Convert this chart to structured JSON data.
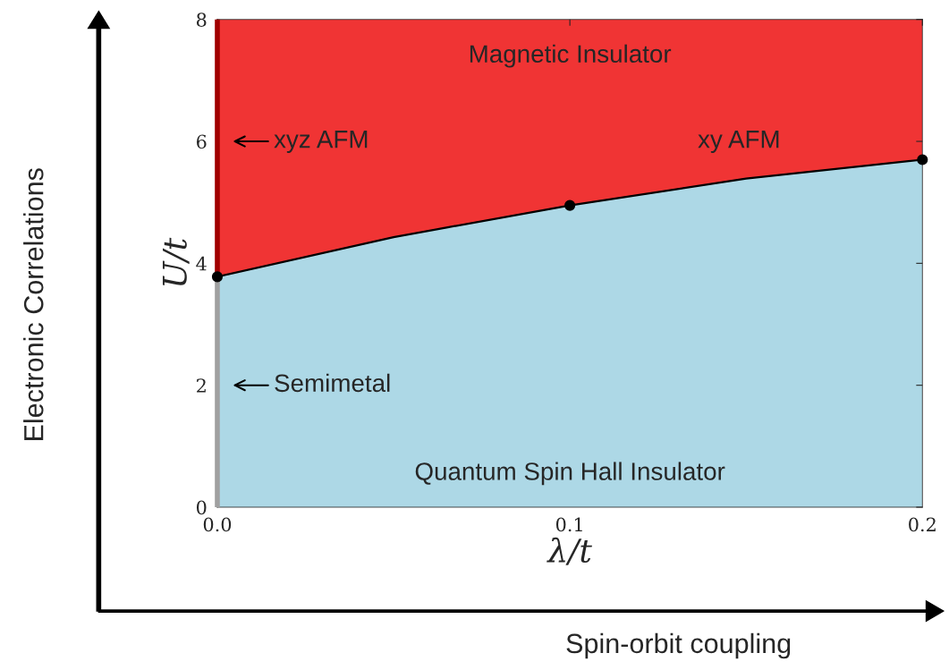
{
  "chart_data": {
    "type": "area",
    "xlabel": "λ/t",
    "ylabel": "U/t",
    "x": [
      0,
      0.05,
      0.1,
      0.15,
      0.2
    ],
    "series": [
      {
        "color": "#f03434",
        "values": [
          8,
          8,
          8,
          8,
          8
        ]
      },
      {
        "color": "#add8e6",
        "values": [
          3.78,
          4.43,
          4.95,
          5.39,
          5.7
        ],
        "line_style": "solid"
      },
      {
        "type": "scatter",
        "color": "#000000",
        "x": [
          0,
          0.1,
          0.2
        ],
        "values": [
          3.78,
          4.95,
          5.7
        ],
        "marker": "circle"
      },
      {
        "type": "line",
        "color": "#a0a0a0",
        "x": [
          0,
          0
        ],
        "values": [
          0,
          3.78
        ],
        "marker": "none"
      },
      {
        "type": "line",
        "color": "#a00000",
        "x": [
          0,
          0
        ],
        "values": [
          3.78,
          8
        ],
        "marker": "none"
      }
    ],
    "xlim": [
      0,
      0.2
    ],
    "ylim": [
      0,
      8
    ],
    "xticks": [
      {
        "value": 0,
        "label": "0.0"
      },
      0.1,
      0.2
    ],
    "yticks": [
      0,
      2,
      4,
      6,
      8
    ],
    "grid": false,
    "legend": false,
    "annotations": [
      "Spin-orbit coupling",
      "Electronic Correlations",
      "Magnetic Insulator",
      "xy AFM",
      "Quantum Spin Hall Insulator",
      {
        "text": "xyz AFM",
        "x": 0,
        "y": 6
      },
      {
        "text": "Semimetal",
        "x": 0,
        "y": 2
      }
    ]
  }
}
